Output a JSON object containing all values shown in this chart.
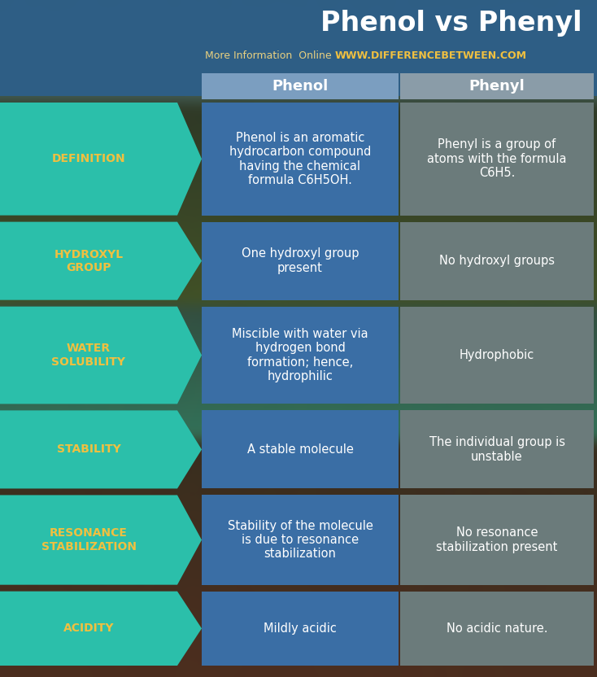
{
  "title": "Phenol vs Phenyl",
  "subtitle_plain": "More Information  Online",
  "subtitle_url": "WWW.DIFFERENCEBETWEEN.COM",
  "col1_header": "Phenol",
  "col2_header": "Phenyl",
  "rows": [
    {
      "label": "DEFINITION",
      "phenol": "Phenol is an aromatic\nhydrocarbon compound\nhaving the chemical\nformula C6H5OH.",
      "phenyl": "Phenyl is a group of\natoms with the formula\nC6H5."
    },
    {
      "label": "HYDROXYL\nGROUP",
      "phenol": "One hydroxyl group\npresent",
      "phenyl": "No hydroxyl groups"
    },
    {
      "label": "WATER\nSOLUBILITY",
      "phenol": "Miscible with water via\nhydrogen bond\nformation; hence,\nhydrophilic",
      "phenyl": "Hydrophobic"
    },
    {
      "label": "STABILITY",
      "phenol": "A stable molecule",
      "phenyl": "The individual group is\nunstable"
    },
    {
      "label": "RESONANCE\nSTABILIZATION",
      "phenol": "Stability of the molecule\nis due to resonance\nstabilization",
      "phenyl": "No resonance\nstabilization present"
    },
    {
      "label": "ACIDITY",
      "phenol": "Mildly acidic",
      "phenyl": "No acidic nature."
    }
  ],
  "bg_overlay_color": "#2d5f8a",
  "header_overlay_color": "#2a5580",
  "arrow_color": "#2bbfaa",
  "label_text_color": "#f0c040",
  "phenol_col_color": "#3a6ea5",
  "phenyl_col_color": "#6b7b7b",
  "phenol_header_color": "#7b9ec0",
  "phenyl_header_color": "#8a9ca8",
  "cell_text_color": "#ffffff",
  "title_color": "#ffffff",
  "subtitle_plain_color": "#e8d080",
  "subtitle_url_color": "#f0c040"
}
